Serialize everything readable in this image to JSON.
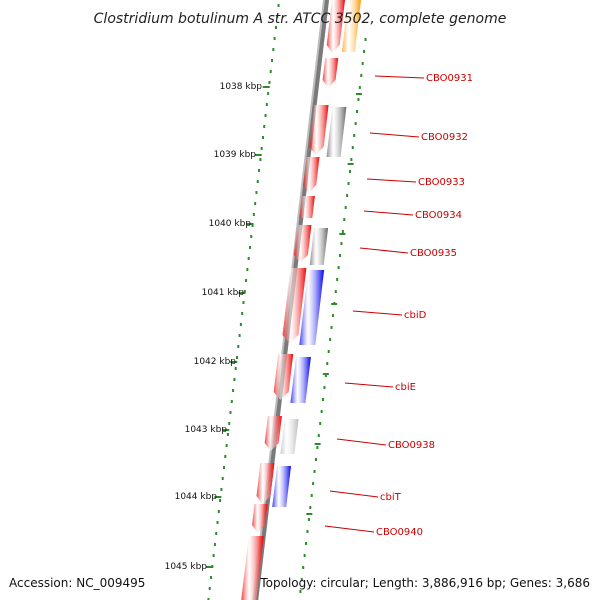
{
  "title": "Clostridium botulinum A str. ATCC 3502, complete genome",
  "accession_text": "Accession: NC_009495",
  "summary_text": "Topology: circular; Length: 3,886,916 bp; Genes: 3,686",
  "scale_labels": [
    "1038 kbp",
    "1039 kbp",
    "1040 kbp",
    "1041 kbp",
    "1042 kbp",
    "1043 kbp",
    "1044 kbp",
    "1045 kbp"
  ],
  "colors": {
    "backbone": "#7a7a7a",
    "dots": "#2e8b2e",
    "label": "#cc0000",
    "cds_red": "#ee0000",
    "blue": "#0000ee",
    "gray_dark": "#666666",
    "gray_light": "#bbbbbb",
    "orange": "#ff9900"
  },
  "gene_labels": [
    "CBO0931",
    "CBO0932",
    "CBO0933",
    "CBO0934",
    "CBO0935",
    "cbiD",
    "cbiE",
    "CBO0938",
    "cbiT",
    "CBO0940"
  ]
}
